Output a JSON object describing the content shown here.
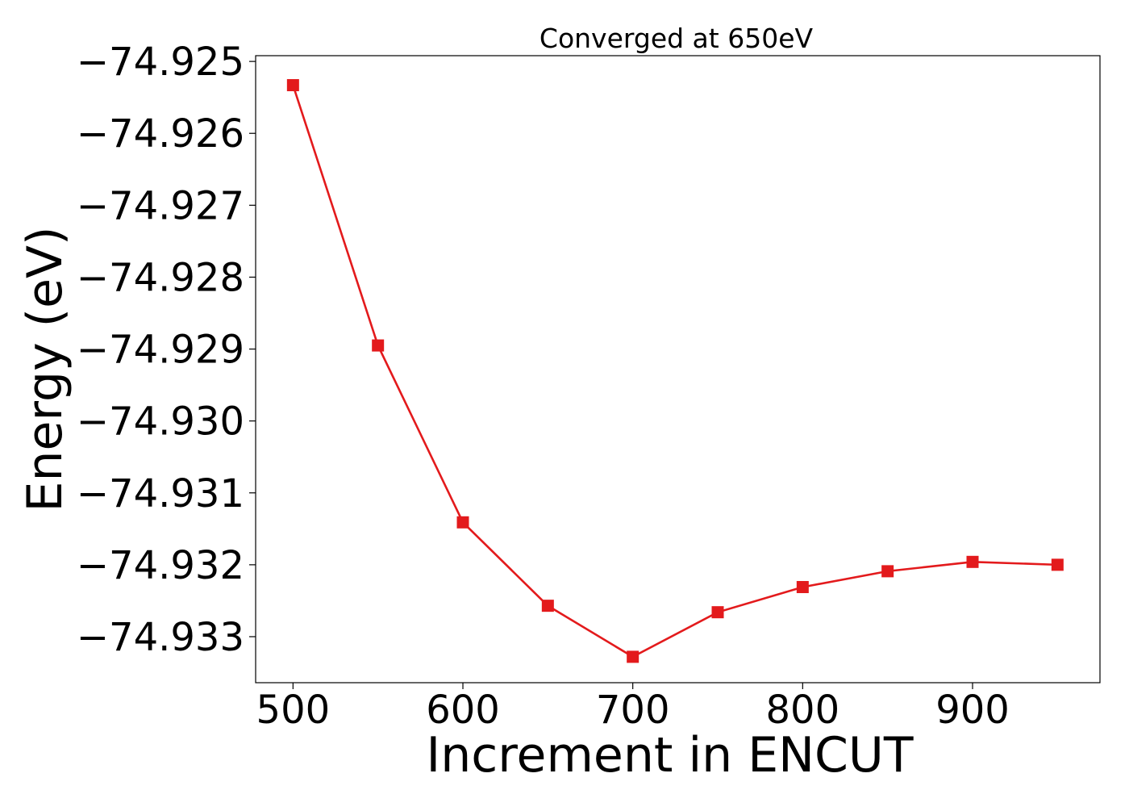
{
  "chart_data": {
    "type": "line",
    "title": "Converged at 650eV",
    "xlabel": "Increment in ENCUT",
    "ylabel": "Energy (eV)",
    "xlim": [
      478,
      975
    ],
    "ylim": [
      -74.93364,
      -74.92492
    ],
    "x_ticks": [
      500,
      600,
      700,
      800,
      900
    ],
    "x_tick_labels": [
      "500",
      "600",
      "700",
      "800",
      "900"
    ],
    "y_ticks": [
      -74.925,
      -74.926,
      -74.927,
      -74.928,
      -74.929,
      -74.93,
      -74.931,
      -74.932,
      -74.933
    ],
    "y_tick_labels": [
      "−74.925",
      "−74.926",
      "−74.927",
      "−74.928",
      "−74.929",
      "−74.930",
      "−74.931",
      "−74.932",
      "−74.933"
    ],
    "grid": false,
    "series": [
      {
        "color": "#e31a1c",
        "marker": "square",
        "x": [
          500,
          550,
          600,
          650,
          700,
          750,
          800,
          850,
          900,
          950
        ],
        "y": [
          -74.92533,
          -74.92895,
          -74.93141,
          -74.93257,
          -74.93328,
          -74.93266,
          -74.93231,
          -74.93209,
          -74.93196,
          -74.932
        ]
      }
    ]
  }
}
